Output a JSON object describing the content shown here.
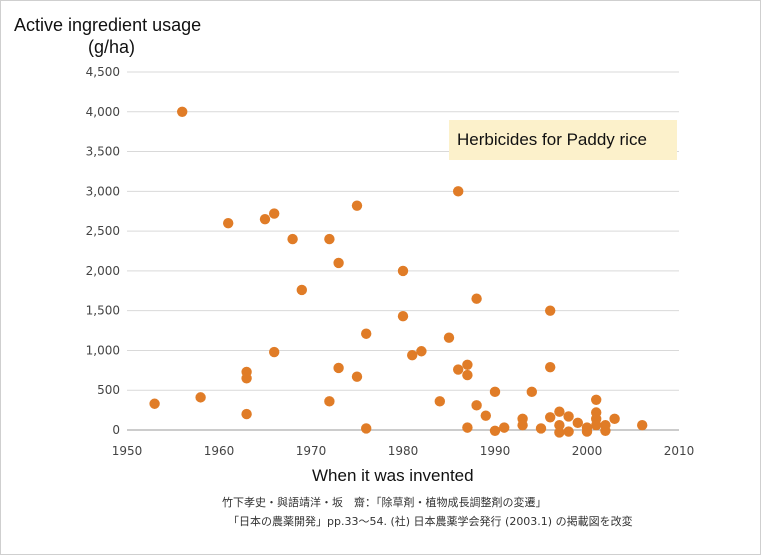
{
  "chart_data": {
    "type": "scatter",
    "title": "",
    "ylabel_lines": [
      "Active ingredient usage",
      "(g/ha)"
    ],
    "xlabel": "When it was invented",
    "legend": "Herbicides for Paddy rice",
    "xlim": [
      1950,
      2010
    ],
    "ylim": [
      0,
      4500
    ],
    "xticks": [
      "1950",
      "1960",
      "1970",
      "1980",
      "1990",
      "2000",
      "2010"
    ],
    "yticks": [
      "0",
      "500",
      "1,000",
      "1,500",
      "2,000",
      "2,500",
      "3,000",
      "3,500",
      "4,000",
      "4,500"
    ],
    "grid": "horizontal",
    "color": "#e07c27",
    "points": [
      [
        1953,
        330
      ],
      [
        1956,
        4000
      ],
      [
        1958,
        410
      ],
      [
        1961,
        2600
      ],
      [
        1963,
        730
      ],
      [
        1963,
        650
      ],
      [
        1963,
        200
      ],
      [
        1965,
        2650
      ],
      [
        1966,
        2720
      ],
      [
        1966,
        980
      ],
      [
        1968,
        2400
      ],
      [
        1969,
        1760
      ],
      [
        1972,
        2400
      ],
      [
        1972,
        360
      ],
      [
        1973,
        2100
      ],
      [
        1973,
        780
      ],
      [
        1975,
        2820
      ],
      [
        1975,
        670
      ],
      [
        1976,
        1210
      ],
      [
        1976,
        20
      ],
      [
        1980,
        2000
      ],
      [
        1980,
        1430
      ],
      [
        1981,
        940
      ],
      [
        1982,
        990
      ],
      [
        1984,
        360
      ],
      [
        1985,
        1160
      ],
      [
        1986,
        3000
      ],
      [
        1986,
        760
      ],
      [
        1987,
        820
      ],
      [
        1987,
        690
      ],
      [
        1987,
        30
      ],
      [
        1988,
        1650
      ],
      [
        1988,
        310
      ],
      [
        1989,
        180
      ],
      [
        1990,
        480
      ],
      [
        1990,
        -10
      ],
      [
        1991,
        30
      ],
      [
        1993,
        140
      ],
      [
        1993,
        60
      ],
      [
        1994,
        480
      ],
      [
        1995,
        20
      ],
      [
        1996,
        1500
      ],
      [
        1996,
        790
      ],
      [
        1996,
        160
      ],
      [
        1997,
        230
      ],
      [
        1997,
        60
      ],
      [
        1997,
        -30
      ],
      [
        1998,
        170
      ],
      [
        1998,
        -20
      ],
      [
        1999,
        90
      ],
      [
        2000,
        30
      ],
      [
        2000,
        -20
      ],
      [
        2001,
        380
      ],
      [
        2001,
        220
      ],
      [
        2001,
        140
      ],
      [
        2001,
        60
      ],
      [
        2002,
        -10
      ],
      [
        2002,
        60
      ],
      [
        2003,
        140
      ],
      [
        2006,
        60
      ]
    ]
  },
  "source": {
    "line1": "竹下孝史・與語靖洋・坂　齋：「除草剤・植物成長調整剤の変遷」",
    "line2": "「日本の農薬開発」pp.33～54. (社) 日本農薬学会発行 (2003.1) の掲載図を改変"
  }
}
